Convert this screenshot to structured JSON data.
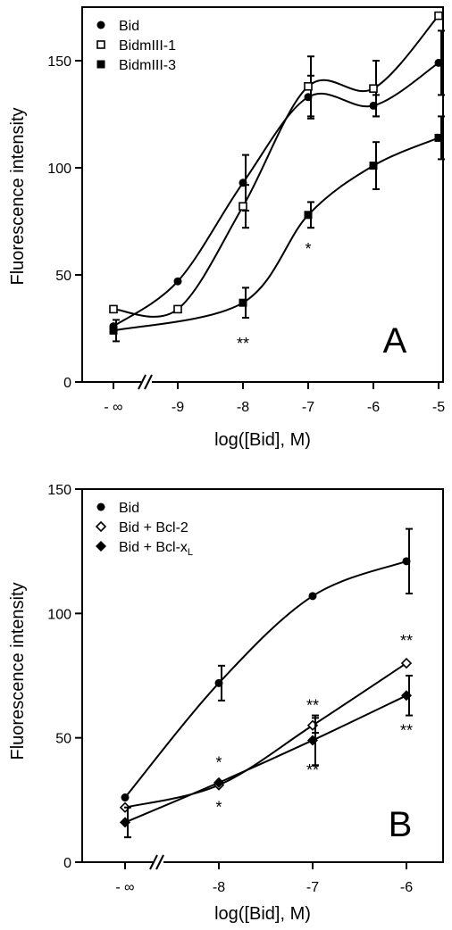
{
  "chart_data": [
    {
      "type": "line",
      "panel": "A",
      "xlabel": "log([Bid], M)",
      "ylabel": "Fluorescence intensity",
      "ylim": [
        0,
        175
      ],
      "yticks": [
        0,
        50,
        100,
        150
      ],
      "categories": [
        "- ∞",
        "-9",
        "-8",
        "-7",
        "-6",
        "-5"
      ],
      "axis_break": "between - ∞ and -9",
      "legend_placement": "top-left",
      "series": [
        {
          "name": "Bid",
          "marker": "filled-circle",
          "values": [
            26,
            47,
            93,
            133,
            129,
            149
          ],
          "errors": [
            0,
            0,
            13,
            10,
            5,
            15
          ]
        },
        {
          "name": "BidmIII-1",
          "marker": "open-square",
          "values": [
            34,
            34,
            82,
            138,
            137,
            171
          ],
          "errors": [
            0,
            0,
            10,
            14,
            13,
            0
          ]
        },
        {
          "name": "BidmIII-3",
          "marker": "filled-square",
          "values": [
            24,
            null,
            37,
            78,
            101,
            114
          ],
          "errors": [
            5,
            0,
            7,
            6,
            11,
            10
          ]
        }
      ],
      "annotations": [
        {
          "text": "**",
          "x": "-8",
          "y": 18
        },
        {
          "text": "*",
          "x": "-7",
          "y": 62
        }
      ]
    },
    {
      "type": "line",
      "panel": "B",
      "xlabel": "log([Bid], M)",
      "ylabel": "Fluorescence intensity",
      "ylim": [
        0,
        150
      ],
      "yticks": [
        0,
        50,
        100,
        150
      ],
      "categories": [
        "- ∞",
        "-8",
        "-7",
        "-6"
      ],
      "axis_break": "between - ∞ and -8",
      "legend_placement": "top-left",
      "series": [
        {
          "name": "Bid",
          "marker": "filled-circle",
          "values": [
            26,
            72,
            107,
            121
          ],
          "errors": [
            0,
            7,
            0,
            13
          ]
        },
        {
          "name": "Bid + Bcl-2",
          "marker": "open-diamond",
          "values": [
            22,
            31,
            55,
            80
          ],
          "errors": [
            0,
            0,
            3,
            0
          ]
        },
        {
          "name": "Bid + Bcl-xL",
          "marker": "filled-diamond",
          "values": [
            16,
            32,
            49,
            67
          ],
          "errors": [
            6,
            0,
            10,
            8
          ]
        }
      ],
      "annotations": [
        {
          "text": "*",
          "x": "-8",
          "y": 40
        },
        {
          "text": "*",
          "x": "-8",
          "y": 22
        },
        {
          "text": "**",
          "x": "-7",
          "y": 63
        },
        {
          "text": "**",
          "x": "-7",
          "y": 37
        },
        {
          "text": "**",
          "x": "-6",
          "y": 89
        },
        {
          "text": "**",
          "x": "-6",
          "y": 53
        }
      ]
    }
  ]
}
